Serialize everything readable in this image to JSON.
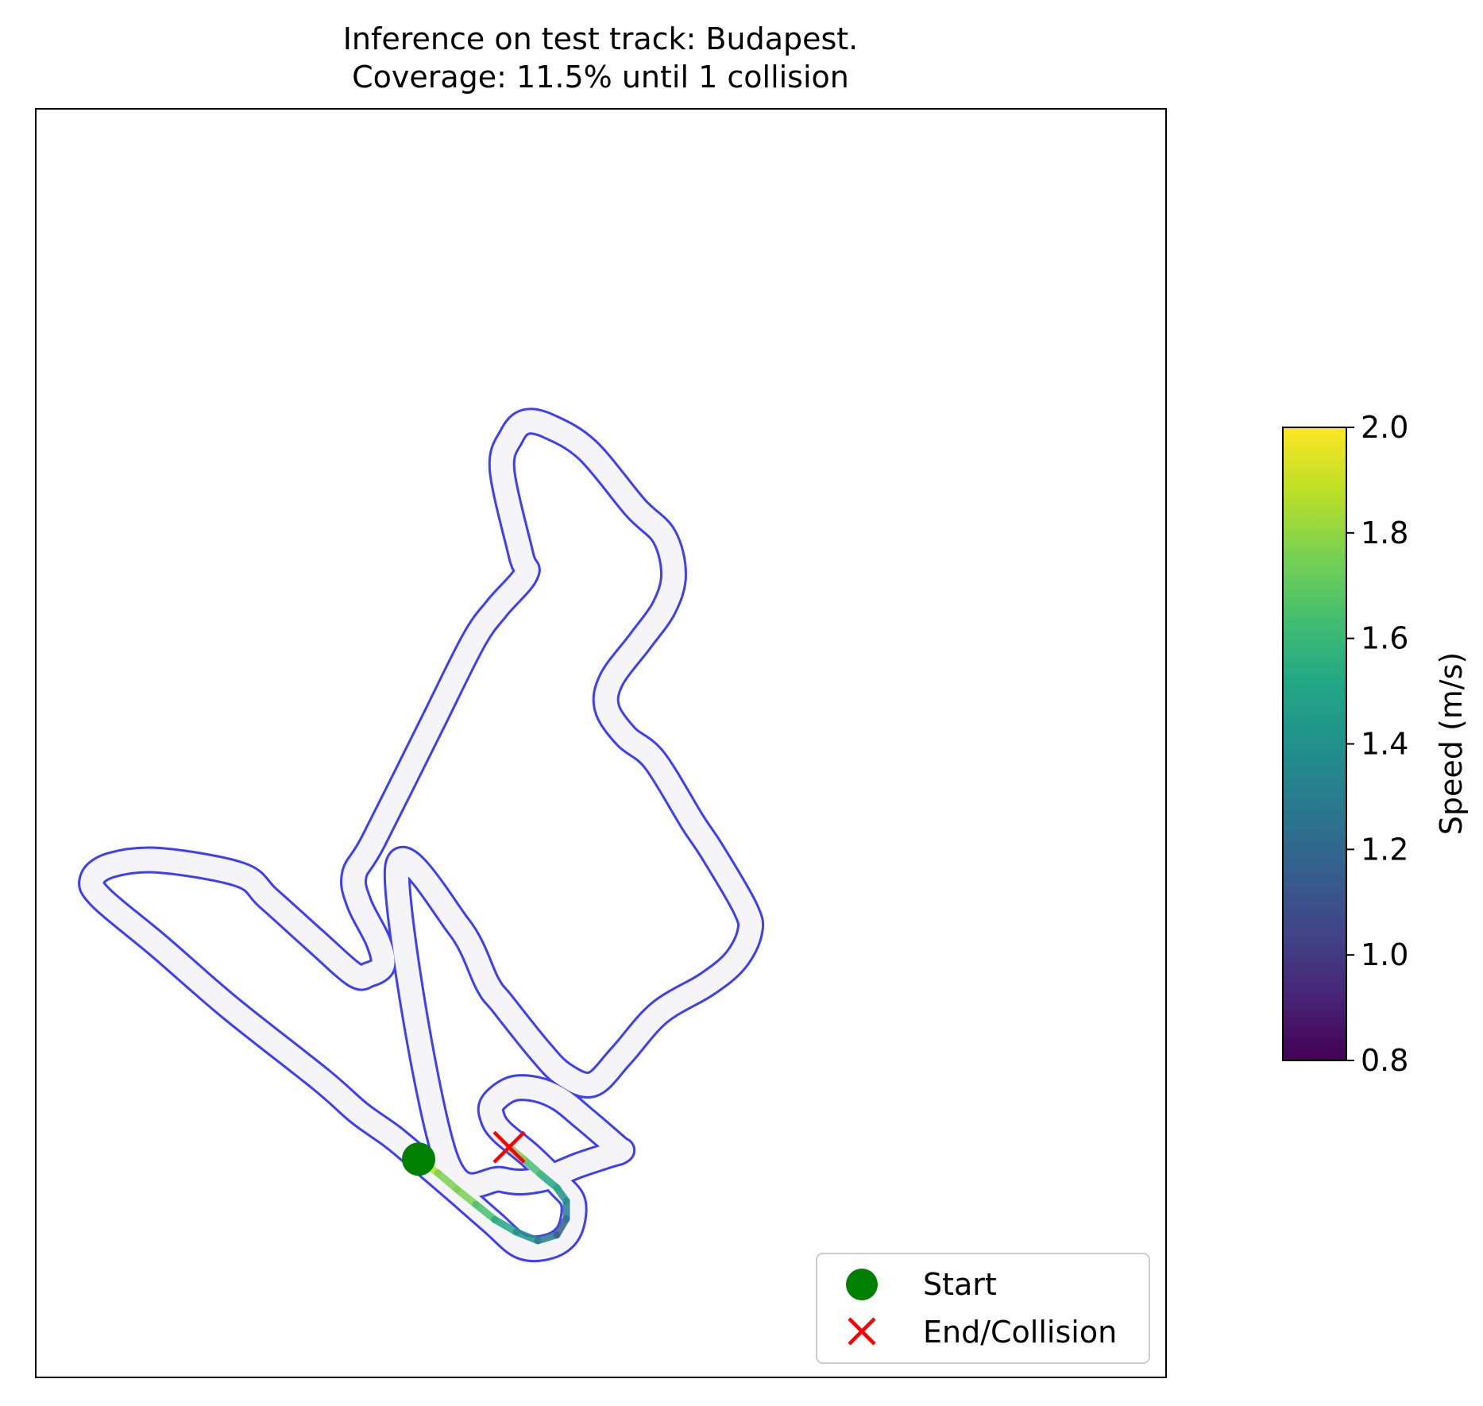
{
  "chart_data": {
    "type": "line",
    "title": "Inference on test track: Budapest.",
    "subtitle": "Coverage: 11.5% until 1 collision",
    "track_name": "Budapest",
    "coverage_percent": 11.5,
    "collisions": 1,
    "xlabel": "",
    "ylabel": "",
    "grid": false,
    "legend": {
      "location": "lower right",
      "entries": [
        {
          "label": "Start",
          "marker": "circle",
          "color": "#008000"
        },
        {
          "label": "End/Collision",
          "marker": "x",
          "color": "#ff0000"
        }
      ]
    },
    "colorbar": {
      "label": "Speed (m/s)",
      "range": [
        0.8,
        2.0
      ],
      "ticks": [
        "0.8",
        "1.0",
        "1.2",
        "1.4",
        "1.6",
        "1.8",
        "2.0"
      ],
      "colormap": "viridis"
    },
    "track": {
      "boundary_color": "#3333ff",
      "surface_color": "#f5f5f7",
      "centerline": [
        [
          8.0,
          11.0
        ],
        [
          9.3,
          9.8
        ],
        [
          9.9,
          8.6
        ],
        [
          10.2,
          8.2
        ],
        [
          11.0,
          7.2
        ],
        [
          11.5,
          6.7
        ],
        [
          12.1,
          6.5
        ],
        [
          12.7,
          7.1
        ],
        [
          13.5,
          8.0
        ],
        [
          14.5,
          8.6
        ],
        [
          15.1,
          9.1
        ],
        [
          15.4,
          9.7
        ],
        [
          15.3,
          10.2
        ],
        [
          14.6,
          11.4
        ],
        [
          14.2,
          12.0
        ],
        [
          13.4,
          13.3
        ],
        [
          12.8,
          13.8
        ],
        [
          12.4,
          14.4
        ],
        [
          12.5,
          15.0
        ],
        [
          13.1,
          15.8
        ],
        [
          13.6,
          16.5
        ],
        [
          13.8,
          17.2
        ],
        [
          13.6,
          18.0
        ],
        [
          13.0,
          18.6
        ],
        [
          12.0,
          19.8
        ],
        [
          11.2,
          20.3
        ],
        [
          10.7,
          20.4
        ],
        [
          10.4,
          20.1
        ],
        [
          10.2,
          19.4
        ],
        [
          10.6,
          17.6
        ],
        [
          10.7,
          17.2
        ],
        [
          10.1,
          16.5
        ],
        [
          9.6,
          15.8
        ],
        [
          8.7,
          14.0
        ],
        [
          7.5,
          11.6
        ],
        [
          7.1,
          10.9
        ],
        [
          7.2,
          10.3
        ],
        [
          7.6,
          9.5
        ],
        [
          7.7,
          9.0
        ],
        [
          7.4,
          8.8
        ],
        [
          7.1,
          8.8
        ],
        [
          6.3,
          9.5
        ],
        [
          5.3,
          10.4
        ],
        [
          4.7,
          10.9
        ],
        [
          3.0,
          11.2
        ],
        [
          2.0,
          11.1
        ],
        [
          1.6,
          10.8
        ],
        [
          1.8,
          10.4
        ],
        [
          3.0,
          9.4
        ],
        [
          4.5,
          8.1
        ],
        [
          6.4,
          6.6
        ],
        [
          7.2,
          5.9
        ],
        [
          7.9,
          5.4
        ],
        [
          8.5,
          4.9
        ],
        [
          9.2,
          4.3
        ],
        [
          10.0,
          3.6
        ],
        [
          10.6,
          3.1
        ],
        [
          11.2,
          3.1
        ],
        [
          11.6,
          3.4
        ],
        [
          11.7,
          4.0
        ],
        [
          11.4,
          4.4
        ],
        [
          10.8,
          5.0
        ],
        [
          10.2,
          5.5
        ],
        [
          10.0,
          5.8
        ],
        [
          10.0,
          6.1
        ],
        [
          10.4,
          6.4
        ],
        [
          10.9,
          6.4
        ],
        [
          11.4,
          6.2
        ],
        [
          11.9,
          5.8
        ],
        [
          12.6,
          5.2
        ],
        [
          12.7,
          5.1
        ],
        [
          12.4,
          5.0
        ],
        [
          11.8,
          4.8
        ],
        [
          11.0,
          4.5
        ],
        [
          10.2,
          4.5
        ],
        [
          9.0,
          5.0
        ],
        [
          8.0,
          11.0
        ]
      ]
    },
    "trajectory": {
      "points": [
        [
          8.45,
          4.93
        ],
        [
          8.85,
          4.64
        ],
        [
          9.25,
          4.3
        ],
        [
          9.65,
          3.98
        ],
        [
          10.05,
          3.66
        ],
        [
          10.5,
          3.4
        ],
        [
          10.95,
          3.22
        ],
        [
          11.35,
          3.34
        ],
        [
          11.55,
          3.68
        ],
        [
          11.55,
          4.05
        ],
        [
          11.35,
          4.33
        ],
        [
          11.0,
          4.62
        ],
        [
          10.65,
          4.93
        ],
        [
          10.35,
          5.18
        ]
      ],
      "speeds": [
        1.9,
        1.8,
        1.7,
        1.6,
        1.5,
        1.4,
        1.3,
        1.2,
        1.3,
        1.4,
        1.5,
        1.6,
        1.7,
        1.8
      ]
    },
    "start": {
      "x": 8.45,
      "y": 4.93
    },
    "end": {
      "x": 10.35,
      "y": 5.18
    }
  }
}
